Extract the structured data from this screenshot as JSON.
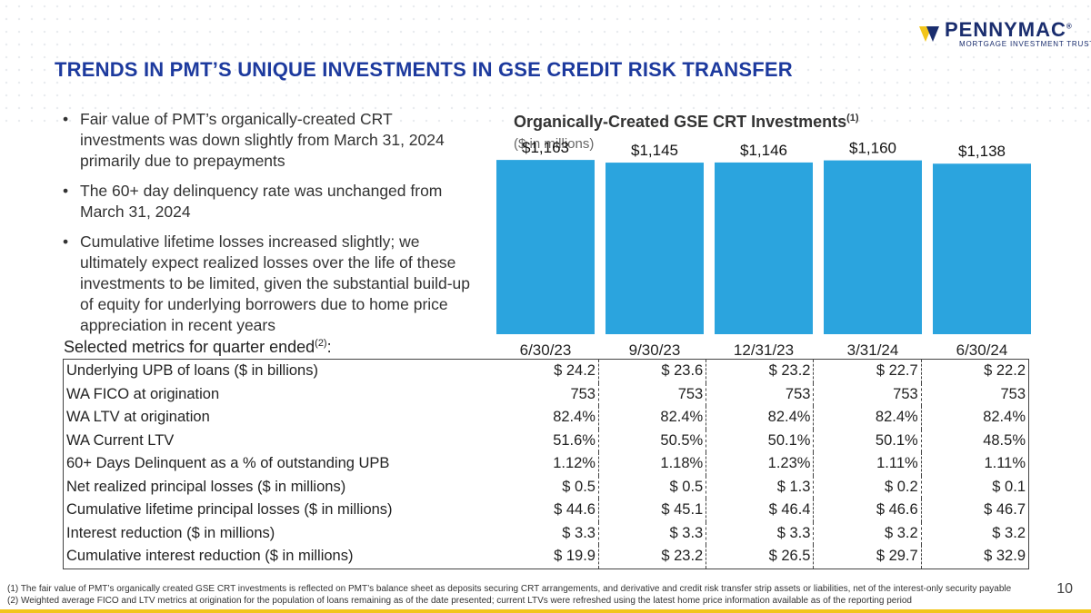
{
  "brand": {
    "name": "PENNYMAC",
    "registered": "®",
    "subtitle": "MORTGAGE INVESTMENT TRUST",
    "colors": {
      "navy": "#1a2d6e",
      "gold": "#f2c51b",
      "bar": "#2ba4de",
      "title_blue": "#1d3a9e"
    }
  },
  "title": "TRENDS IN PMT’S UNIQUE INVESTMENTS IN GSE CREDIT RISK TRANSFER",
  "bullets": [
    "Fair value of PMT’s organically-created CRT investments was down slightly from March 31, 2024 primarily due to prepayments",
    "The 60+ day delinquency rate was unchanged from March 31, 2024",
    "Cumulative lifetime losses increased slightly; we ultimately expect realized losses over the life of these investments to be limited, given the substantial build-up of equity for underlying borrowers due to home price appreciation in recent years"
  ],
  "chart_data": {
    "type": "bar",
    "title": "Organically-Created GSE CRT Investments",
    "title_footnote": "(1)",
    "subtitle": "($ in millions)",
    "categories": [
      "6/30/23",
      "9/30/23",
      "12/31/23",
      "3/31/24",
      "6/30/24"
    ],
    "values": [
      1163,
      1145,
      1146,
      1160,
      1138
    ],
    "data_labels": [
      "$1,163",
      "$1,145",
      "$1,146",
      "$1,160",
      "$1,138"
    ],
    "ylim": [
      0,
      1200
    ],
    "grid": false,
    "legend": "none",
    "color": "#2ba4de"
  },
  "metrics": {
    "label": "Selected metrics for quarter ended",
    "label_footnote": "(2)",
    "label_suffix": ":",
    "columns": [
      "6/30/23",
      "9/30/23",
      "12/31/23",
      "3/31/24",
      "6/30/24"
    ],
    "rows": [
      {
        "label": "Underlying UPB of loans ($ in billions)",
        "values": [
          "$ 24.2",
          "$ 23.6",
          "$ 23.2",
          "$ 22.7",
          "$ 22.2"
        ]
      },
      {
        "label": "WA FICO at origination",
        "values": [
          "753",
          "753",
          "753",
          "753",
          "753"
        ]
      },
      {
        "label": "WA LTV at origination",
        "values": [
          "82.4%",
          "82.4%",
          "82.4%",
          "82.4%",
          "82.4%"
        ]
      },
      {
        "label": "WA Current LTV",
        "values": [
          "51.6%",
          "50.5%",
          "50.1%",
          "50.1%",
          "48.5%"
        ]
      },
      {
        "label": "60+ Days Delinquent as a % of outstanding UPB",
        "values": [
          "1.12%",
          "1.18%",
          "1.23%",
          "1.11%",
          "1.11%"
        ]
      },
      {
        "label": "Net realized principal losses ($ in millions)",
        "values": [
          "$ 0.5",
          "$ 0.5",
          "$ 1.3",
          "$ 0.2",
          "$ 0.1"
        ]
      },
      {
        "label": "Cumulative lifetime principal losses ($ in millions)",
        "values": [
          "$ 44.6",
          "$ 45.1",
          "$ 46.4",
          "$ 46.6",
          "$ 46.7"
        ]
      },
      {
        "label": "Interest reduction ($ in millions)",
        "values": [
          "$ 3.3",
          "$ 3.3",
          "$ 3.3",
          "$ 3.2",
          "$ 3.2"
        ]
      },
      {
        "label": "Cumulative interest reduction ($ in millions)",
        "values": [
          "$ 19.9",
          "$ 23.2",
          "$ 26.5",
          "$ 29.7",
          "$ 32.9"
        ]
      }
    ]
  },
  "footnotes": [
    "(1) The fair value of PMT’s organically created GSE CRT investments is reflected on PMT’s balance sheet as deposits securing CRT arrangements, and derivative and credit risk transfer strip assets or liabilities, net of the interest-only security payable",
    "(2) Weighted average FICO and LTV metrics at origination for the population of loans remaining as of the date presented; current LTVs were refreshed using the latest home price information available as of the reporting period"
  ],
  "page_number": "10"
}
